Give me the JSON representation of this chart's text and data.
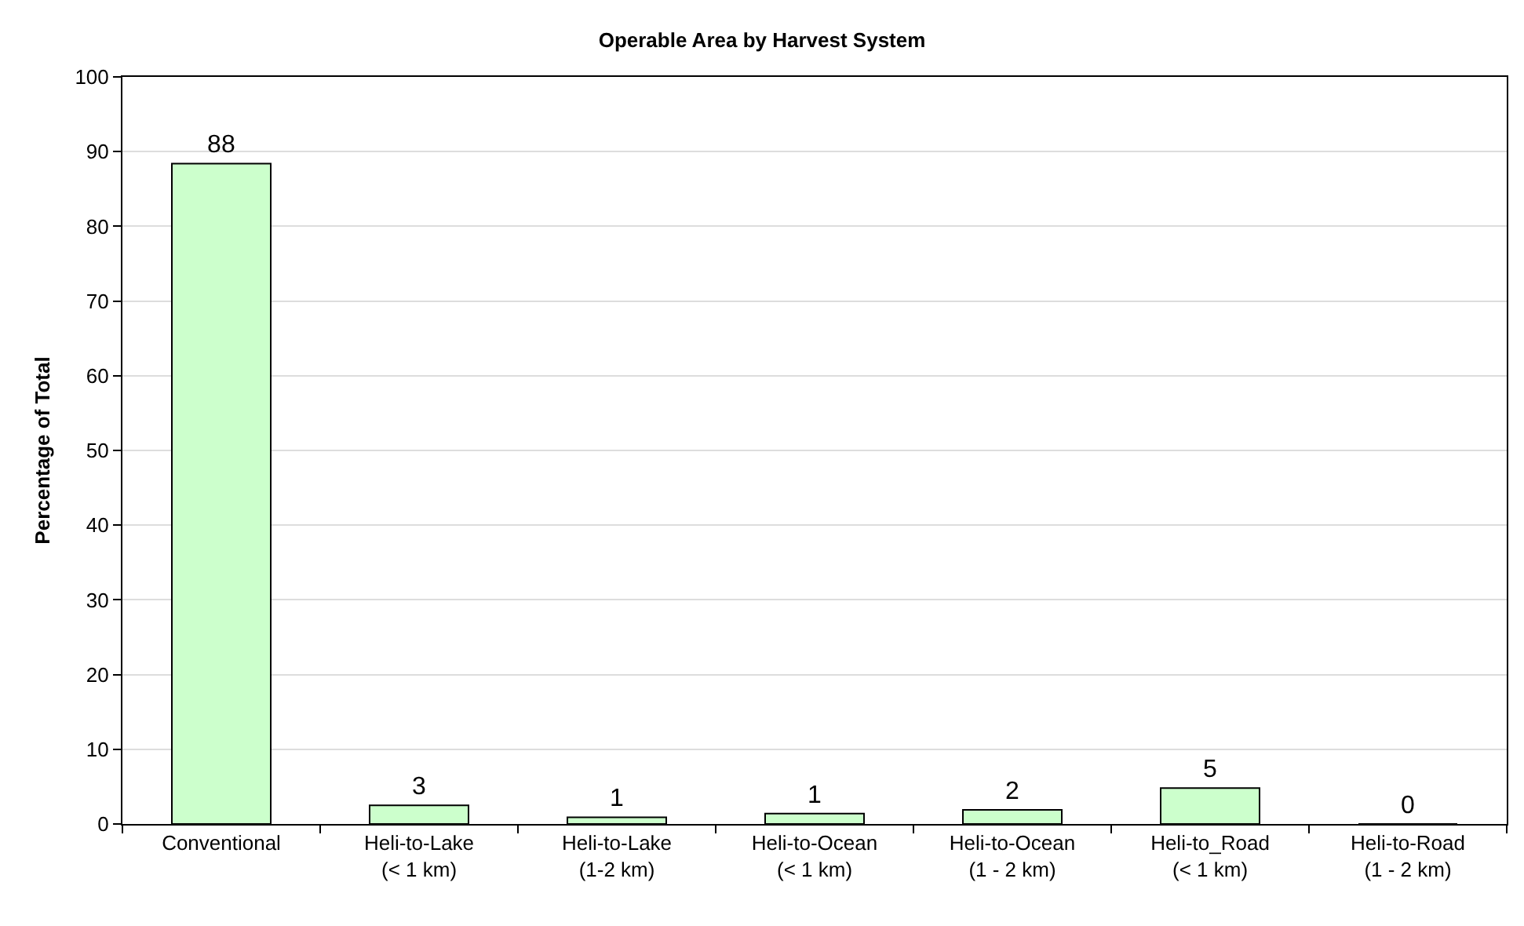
{
  "chart_data": {
    "type": "bar",
    "title": "Operable Area by Harvest System",
    "ylabel": "Percentage of Total",
    "categories": [
      "Conventional",
      "Heli-to-Lake\n(< 1 km)",
      "Heli-to-Lake\n(1-2 km)",
      "Heli-to-Ocean\n(< 1 km)",
      "Heli-to-Ocean\n(1 - 2 km)",
      "Heli-to_Road\n(< 1 km)",
      "Heli-to-Road\n(1 - 2 km)"
    ],
    "values": [
      88.4,
      2.5,
      0.9,
      1.4,
      1.9,
      4.8,
      0
    ],
    "value_labels": [
      "88",
      "3",
      "1",
      "1",
      "2",
      "5",
      "0"
    ],
    "color": "#ccffcc",
    "ylim": [
      0,
      100
    ],
    "yticks": [
      0,
      10,
      20,
      30,
      40,
      50,
      60,
      70,
      80,
      90,
      100
    ],
    "grid": "y"
  }
}
